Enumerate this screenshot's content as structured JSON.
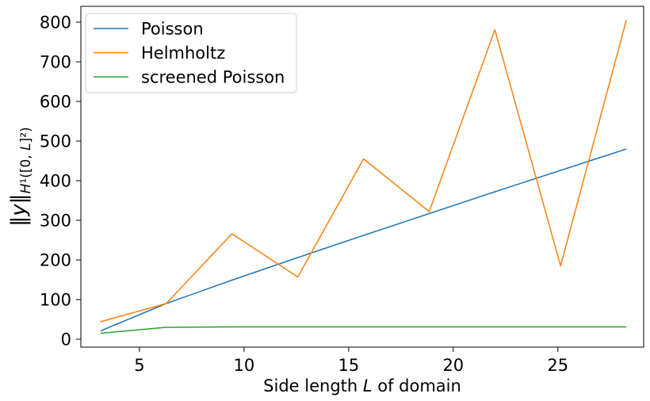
{
  "chart_data": {
    "type": "line",
    "xlabel": "Side length L of domain",
    "ylabel": "‖y‖H¹([0,L]²)",
    "xlim": [
      2.2,
      29.1
    ],
    "ylim": [
      -20,
      840
    ],
    "xticks": [
      5,
      10,
      15,
      20,
      25
    ],
    "yticks": [
      0,
      100,
      200,
      300,
      400,
      500,
      600,
      700,
      800
    ],
    "grid": false,
    "legend_position": "top-left",
    "x": [
      3.14,
      6.28,
      9.42,
      12.57,
      15.71,
      18.85,
      21.99,
      25.13,
      28.27
    ],
    "series": [
      {
        "name": "Poisson",
        "color": "#1f77b4",
        "values": [
          21,
          90,
          149,
          206,
          262,
          317,
          372,
          426,
          480
        ]
      },
      {
        "name": "Helmholtz",
        "color": "#ff7f0e",
        "values": [
          44,
          90,
          266,
          157,
          455,
          322,
          781,
          185,
          805
        ]
      },
      {
        "name": "screened Poisson",
        "color": "#2ca02c",
        "values": [
          15,
          30,
          31,
          31,
          31,
          31,
          31,
          31,
          31
        ]
      }
    ]
  }
}
